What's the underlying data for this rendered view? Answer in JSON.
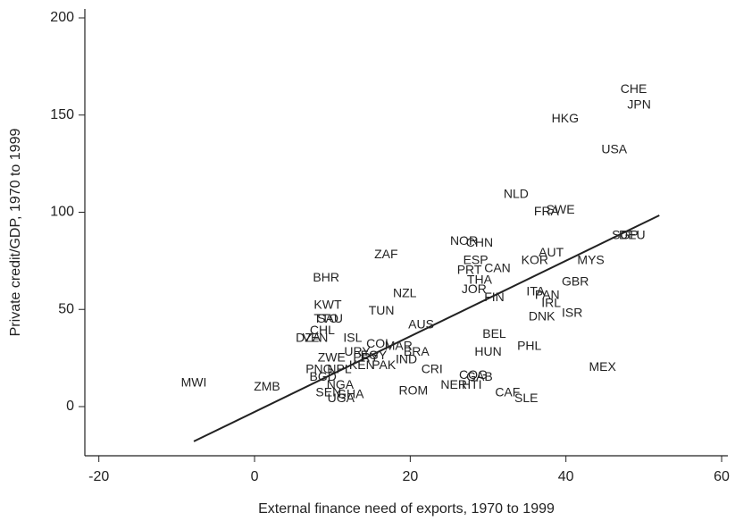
{
  "chart_data": {
    "type": "scatter",
    "x_label": "External finance need of exports, 1970 to 1999",
    "y_label": "Private credit/GDP, 1970 to 1999",
    "xlim": [
      -21.8,
      60.8
    ],
    "ylim": [
      -25.3,
      204.6
    ],
    "xticks": [
      -20,
      0,
      20,
      40,
      60
    ],
    "yticks": [
      0,
      50,
      100,
      150,
      200
    ],
    "color": "#222222",
    "labels": [
      "CHE",
      "JPN",
      "HKG",
      "USA",
      "NLD",
      "FRA",
      "SWE",
      "SGP",
      "DEU",
      "NOR",
      "CHN",
      "AUT",
      "ESP",
      "KOR",
      "MYS",
      "ZAF",
      "PRT",
      "CAN",
      "THA",
      "GBR",
      "BHR",
      "JOR",
      "ITA",
      "NZL",
      "FIN",
      "PAN",
      "IRL",
      "KWT",
      "TUN",
      "ISR",
      "DNK",
      "TTO",
      "SAU",
      "AUS",
      "CHL",
      "BEL",
      "DZA",
      "VEN",
      "ISL",
      "PHL",
      "BRA",
      "HUN",
      "ZWE",
      "MEX",
      "IND",
      "CRI",
      "PNG",
      "COG",
      "GAB",
      "MWI",
      "ZMB",
      "NER",
      "HTI",
      "CAF",
      "SLE",
      "NGA",
      "ROM",
      "SEN",
      "UGA",
      "GHA",
      "BGD",
      "KEN",
      "MAR",
      "EGY",
      "PAK",
      "URY",
      "NPL",
      "PRY",
      "COL"
    ],
    "x": [
      48.7,
      49.4,
      39.9,
      46.2,
      33.6,
      37.5,
      39.3,
      47.6,
      48.5,
      26.9,
      28.9,
      38.1,
      28.4,
      36.0,
      43.2,
      16.9,
      27.6,
      31.2,
      28.9,
      41.2,
      9.2,
      28.2,
      36.1,
      19.3,
      30.8,
      37.6,
      38.1,
      9.4,
      16.3,
      40.8,
      36.9,
      9.2,
      9.7,
      21.4,
      8.7,
      30.8,
      6.9,
      7.8,
      12.6,
      35.3,
      20.8,
      30.0,
      9.9,
      44.7,
      19.5,
      22.8,
      8.3,
      28.1,
      28.9,
      -7.8,
      1.6,
      25.6,
      27.9,
      32.5,
      34.9,
      11.0,
      20.4,
      9.5,
      11.1,
      12.3,
      8.8,
      13.8,
      18.5,
      15.3,
      16.6,
      13.2,
      10.9,
      14.3,
      16.0
    ],
    "y": [
      163,
      155,
      148,
      132,
      109,
      100,
      101,
      88,
      88,
      85,
      84,
      79,
      75,
      75,
      75,
      78,
      70,
      71,
      65,
      64,
      66,
      60,
      59,
      58,
      56,
      57,
      53,
      52,
      49,
      48,
      46,
      45,
      45,
      42,
      39,
      37,
      35,
      35,
      35,
      31,
      28,
      28,
      25,
      20,
      24,
      19,
      19,
      16,
      15,
      12,
      10,
      11,
      11,
      7,
      4,
      11,
      8,
      7,
      4,
      6,
      15,
      21,
      31,
      26,
      21,
      28,
      19,
      25,
      32
    ],
    "fit_line": {
      "x": [
        -7.8,
        52
      ],
      "y": [
        -17.9,
        98.4
      ]
    }
  }
}
